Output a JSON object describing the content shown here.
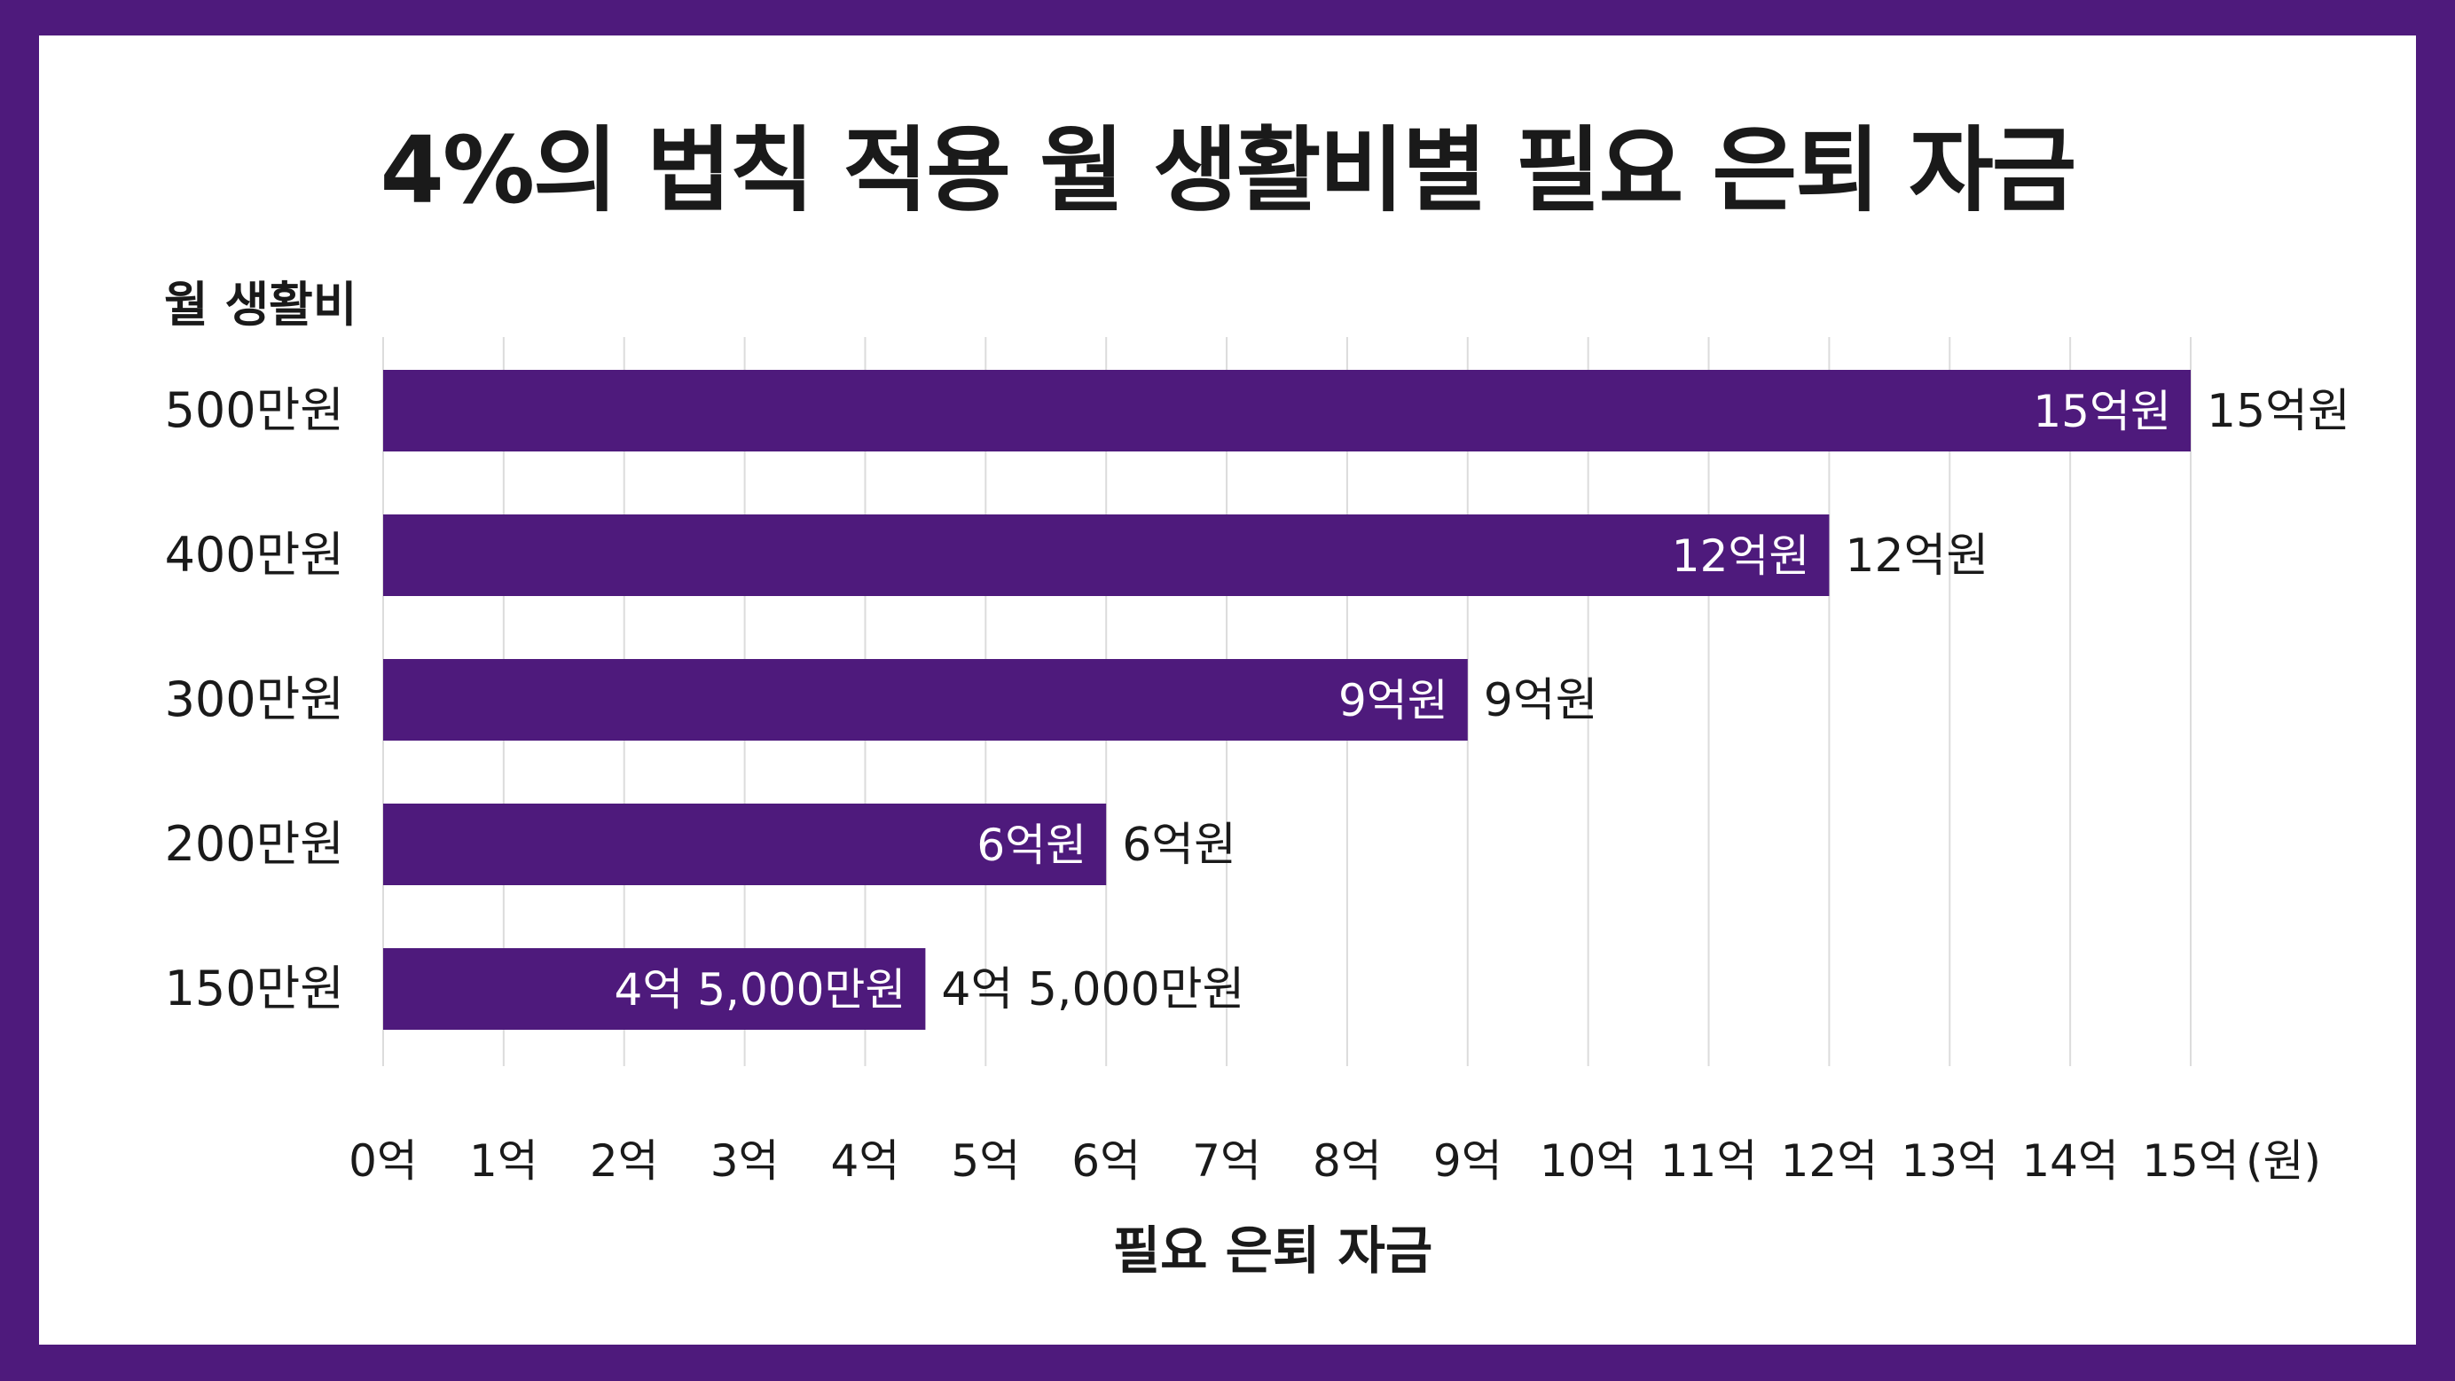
{
  "chart_data": {
    "type": "bar",
    "orientation": "horizontal",
    "title": "4%의 법칙 적용 월 생활비별 필요 은퇴 자금",
    "ylabel": "월 생활비",
    "xlabel": "필요 은퇴 자금",
    "categories": [
      "500만원",
      "400만원",
      "300만원",
      "200만원",
      "150만원"
    ],
    "values": [
      15,
      12,
      9,
      6,
      4.5
    ],
    "value_unit": "억원",
    "data_labels": [
      "15억원",
      "12억원",
      "9억원",
      "6억원",
      "4억 5,000만원"
    ],
    "xlim": [
      0,
      15
    ],
    "x_ticks": [
      "0억",
      "1억",
      "2억",
      "3억",
      "4억",
      "5억",
      "6억",
      "7억",
      "8억",
      "9억",
      "10억",
      "11억",
      "12억",
      "13억",
      "14억",
      "15억"
    ],
    "x_unit_label": "(원)",
    "grid": true,
    "legend": "none",
    "bar_color": "#4e1a7c",
    "border_color": "#4e1a7c"
  }
}
